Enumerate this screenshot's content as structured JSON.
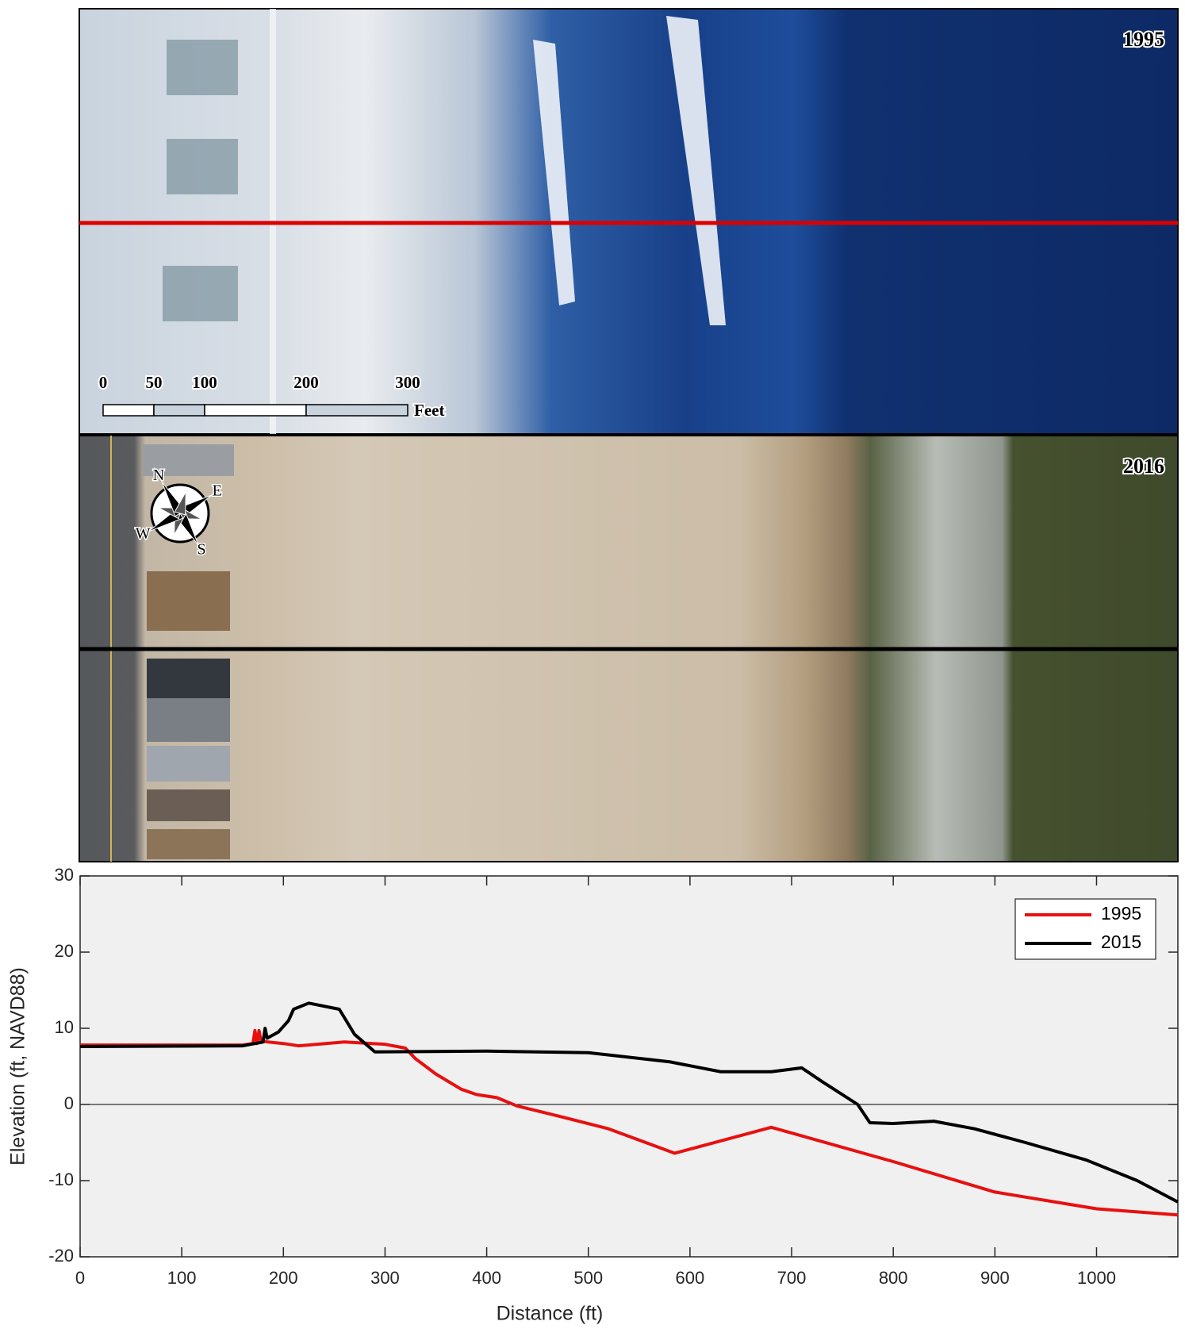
{
  "panels": [
    {
      "label": "1995"
    },
    {
      "label": "2016"
    }
  ],
  "scale_bar": {
    "ticks": [
      0,
      50,
      100,
      200,
      300
    ],
    "unit": "Feet"
  },
  "compass": [
    "N",
    "E",
    "S",
    "W"
  ],
  "chart_data": {
    "type": "line",
    "xlabel": "Distance (ft)",
    "ylabel": "Elevation (ft, NAVD88)",
    "xlim": [
      0,
      1080
    ],
    "ylim": [
      -20,
      30
    ],
    "xticks": [
      0,
      100,
      200,
      300,
      400,
      500,
      600,
      700,
      800,
      900,
      1000
    ],
    "yticks": [
      -20,
      -10,
      0,
      10,
      20,
      30
    ],
    "grid": false,
    "legend": "upper right",
    "series": [
      {
        "name": "1995",
        "color": "#e8100f",
        "x": [
          0,
          160,
          170,
          172,
          174,
          176,
          178,
          200,
          215,
          260,
          300,
          320,
          330,
          350,
          375,
          390,
          410,
          430,
          470,
          520,
          585,
          680,
          800,
          900,
          1000,
          1080
        ],
        "values": [
          7.8,
          7.8,
          8,
          9.7,
          8,
          9.7,
          8.3,
          8,
          7.7,
          8.2,
          7.9,
          7.4,
          6,
          4,
          2,
          1.3,
          0.9,
          -0.2,
          -1.5,
          -3.2,
          -6.4,
          -3,
          -7.5,
          -11.5,
          -13.7,
          -14.5
        ]
      },
      {
        "name": "2015",
        "color": "#000000",
        "x": [
          0,
          160,
          180,
          182,
          184,
          195,
          205,
          210,
          225,
          255,
          270,
          290,
          400,
          500,
          580,
          630,
          680,
          710,
          730,
          765,
          777,
          800,
          840,
          880,
          930,
          990,
          1040,
          1080
        ],
        "values": [
          7.6,
          7.7,
          8.2,
          10,
          8.7,
          9.5,
          11,
          12.5,
          13.3,
          12.5,
          9.2,
          6.9,
          7,
          6.8,
          5.6,
          4.3,
          4.3,
          4.8,
          3,
          0,
          -2.4,
          -2.5,
          -2.2,
          -3.2,
          -5,
          -7.3,
          -10,
          -12.8
        ]
      }
    ]
  }
}
